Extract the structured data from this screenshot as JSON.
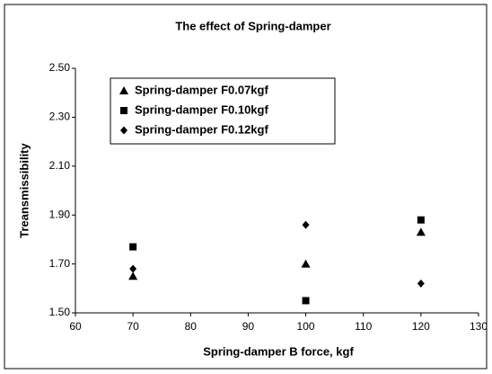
{
  "chart_data": {
    "type": "scatter",
    "title": "The effect of Spring-damper",
    "x_label": "Spring-damper B force, kgf",
    "y_label": "Treansmissibility",
    "series": [
      {
        "name": "Spring-damper F0.07kgf",
        "color": "#000000",
        "marker": "triangle",
        "x": [
          70,
          100,
          120
        ],
        "values": [
          1.65,
          1.7,
          1.83
        ]
      },
      {
        "name": "Spring-damper F0.10kgf",
        "color": "#000000",
        "marker": "square",
        "x": [
          70,
          100,
          120
        ],
        "values": [
          1.77,
          1.55,
          1.88
        ]
      },
      {
        "name": "Spring-damper F0.12kgf",
        "color": "#000000",
        "marker": "diamond",
        "x": [
          70,
          100,
          120
        ],
        "values": [
          1.68,
          1.86,
          1.62
        ]
      }
    ],
    "xlim": [
      60,
      130
    ],
    "xticks": [
      60,
      70,
      80,
      90,
      100,
      110,
      120,
      130
    ],
    "ylim": [
      1.5,
      2.5
    ],
    "yticks": [
      {
        "value": 1.5,
        "label": "1.50"
      },
      {
        "value": 1.7,
        "label": "1.70"
      },
      {
        "value": 1.9,
        "label": "1.90"
      },
      {
        "value": 2.1,
        "label": "2.10"
      },
      {
        "value": 2.3,
        "label": "2.30"
      },
      {
        "value": 2.5,
        "label": "2.50"
      }
    ],
    "grid": false,
    "legend": "upper left"
  }
}
